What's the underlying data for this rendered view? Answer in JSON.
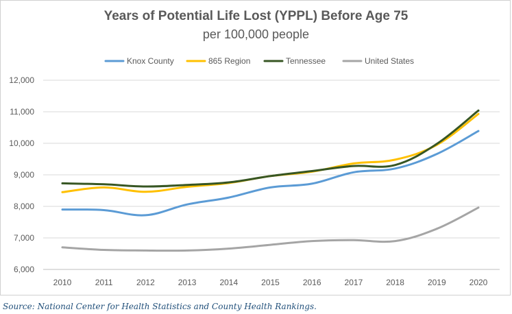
{
  "chart_data": {
    "type": "line",
    "title": "Years of Potential Life Lost (YPPL) Before Age 75",
    "subtitle": "per 100,000 people",
    "xlabel": "",
    "ylabel": "",
    "x": [
      "2010",
      "2011",
      "2012",
      "2013",
      "2014",
      "2015",
      "2016",
      "2017",
      "2018",
      "2019",
      "2020"
    ],
    "ylim": [
      6000,
      12000
    ],
    "yticks": [
      6000,
      7000,
      8000,
      9000,
      10000,
      11000,
      12000
    ],
    "ytick_labels": [
      "6,000",
      "7,000",
      "8,000",
      "9,000",
      "10,000",
      "11,000",
      "12,000"
    ],
    "grid": "horizontal",
    "legend_position": "top",
    "series": [
      {
        "name": "Knox County",
        "color": "#5b9bd5",
        "values": [
          7900,
          7880,
          7720,
          8060,
          8280,
          8600,
          8720,
          9080,
          9200,
          9660,
          10390
        ]
      },
      {
        "name": "865 Region",
        "color": "#ffc000",
        "values": [
          8450,
          8600,
          8460,
          8620,
          8740,
          8960,
          9100,
          9360,
          9480,
          9950,
          10930
        ]
      },
      {
        "name": "Tennessee",
        "color": "#375623",
        "values": [
          8730,
          8700,
          8630,
          8680,
          8760,
          8960,
          9120,
          9280,
          9310,
          9980,
          11040
        ]
      },
      {
        "name": "United States",
        "color": "#a5a5a5",
        "values": [
          6700,
          6620,
          6600,
          6600,
          6660,
          6780,
          6900,
          6930,
          6900,
          7290,
          7960
        ]
      }
    ]
  },
  "source": "Source: National Center for Health Statistics and County Health Rankings."
}
